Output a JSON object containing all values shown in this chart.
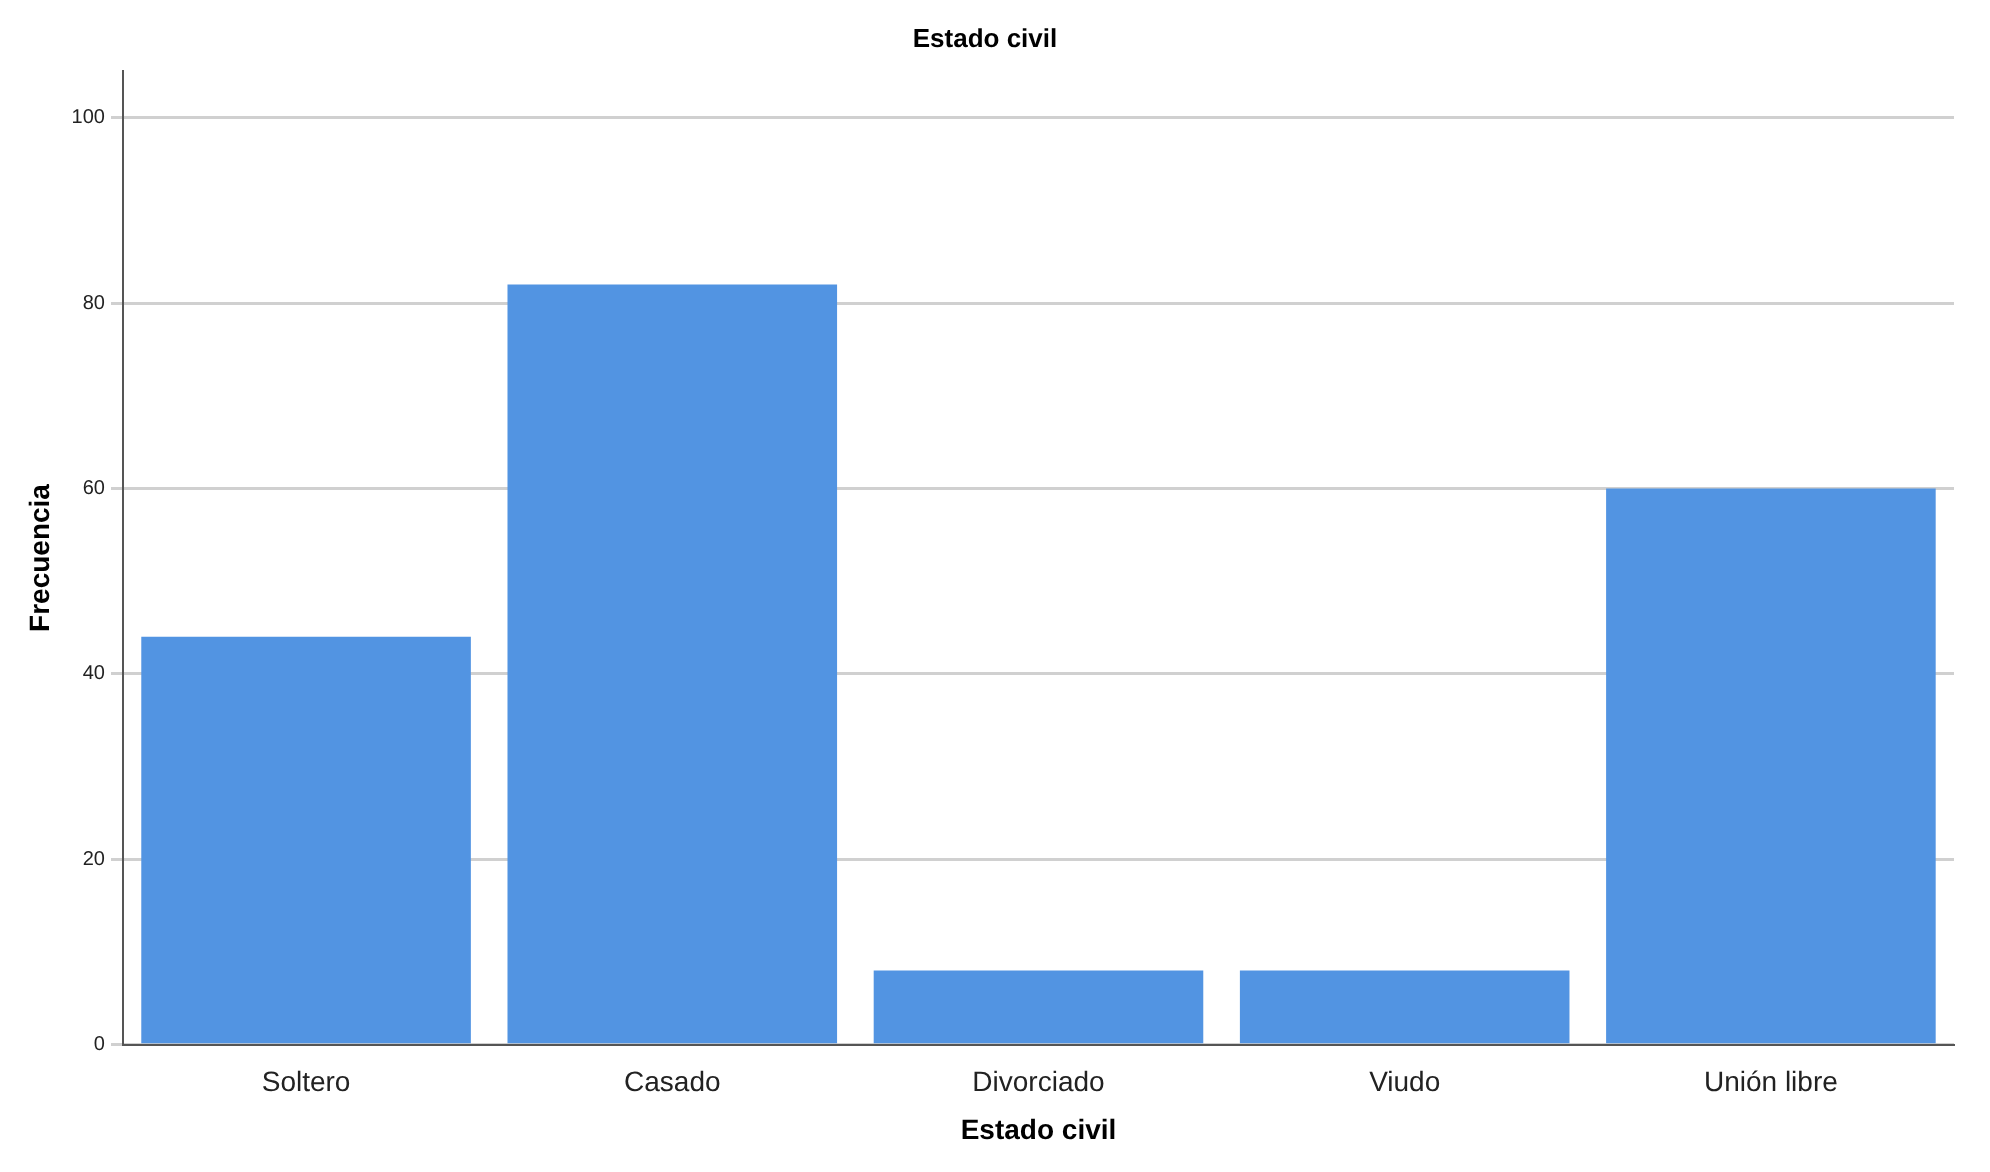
{
  "chart_data": {
    "type": "bar",
    "title": "Estado civil",
    "xlabel": "Estado civil",
    "ylabel": "Frecuencia",
    "categories": [
      "Soltero",
      "Casado",
      "Divorciado",
      "Viudo",
      "Unión libre"
    ],
    "values": [
      44,
      82,
      8,
      8,
      60
    ],
    "color": "#5294e2",
    "ylim": [
      0,
      105
    ],
    "yticks": [
      0,
      20,
      40,
      60,
      80,
      100
    ],
    "grid": "y",
    "legend": false
  }
}
